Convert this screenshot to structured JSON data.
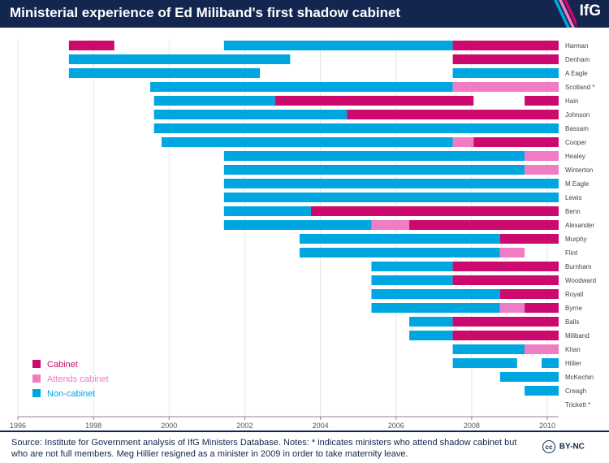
{
  "header": {
    "title": "Ministerial experience of Ed Miliband's first shadow cabinet",
    "logo": "IfG"
  },
  "footer": {
    "source": "Source: Institute for Government analysis of IfG Ministers Database. Notes: * indicates ministers who attend shadow cabinet but who are not full members. Meg Hillier resigned as a minister in 2009 in order to take maternity leave.",
    "license_icon": "cc",
    "license": "BY-NC"
  },
  "colors": {
    "cabinet": "#cc0a6e",
    "attends": "#f07cc3",
    "noncabinet": "#00a6e0",
    "navy": "#12264f"
  },
  "chart_data": {
    "type": "timeline",
    "title": "Ministerial experience of Ed Miliband's first shadow cabinet",
    "xlim": [
      1996,
      2010.3
    ],
    "xticks": [
      1996,
      1998,
      2000,
      2002,
      2004,
      2006,
      2008,
      2010
    ],
    "legend": [
      {
        "label": "Cabinet",
        "key": "cabinet"
      },
      {
        "label": "Attends cabinet",
        "key": "attends"
      },
      {
        "label": "Non-cabinet",
        "key": "noncabinet"
      }
    ],
    "legend_position": "bottom-left",
    "rows": [
      {
        "name": "Harman",
        "segments": [
          {
            "s": 1997.35,
            "e": 1998.55,
            "t": "cabinet"
          },
          {
            "s": 2001.45,
            "e": 2007.5,
            "t": "noncabinet"
          },
          {
            "s": 2007.5,
            "e": 2010.3,
            "t": "cabinet"
          }
        ]
      },
      {
        "name": "Denham",
        "segments": [
          {
            "s": 1997.35,
            "e": 2003.2,
            "t": "noncabinet"
          },
          {
            "s": 2007.5,
            "e": 2010.3,
            "t": "cabinet"
          }
        ]
      },
      {
        "name": "A Eagle",
        "segments": [
          {
            "s": 1997.35,
            "e": 2002.4,
            "t": "noncabinet"
          },
          {
            "s": 2007.5,
            "e": 2010.3,
            "t": "noncabinet"
          }
        ]
      },
      {
        "name": "Scotland *",
        "segments": [
          {
            "s": 1999.5,
            "e": 2007.5,
            "t": "noncabinet"
          },
          {
            "s": 2007.5,
            "e": 2010.3,
            "t": "attends"
          }
        ]
      },
      {
        "name": "Hain",
        "segments": [
          {
            "s": 1999.6,
            "e": 2002.8,
            "t": "noncabinet"
          },
          {
            "s": 2002.8,
            "e": 2008.05,
            "t": "cabinet"
          },
          {
            "s": 2009.4,
            "e": 2010.3,
            "t": "cabinet"
          }
        ]
      },
      {
        "name": "Johnson",
        "segments": [
          {
            "s": 1999.6,
            "e": 2004.7,
            "t": "noncabinet"
          },
          {
            "s": 2004.7,
            "e": 2010.3,
            "t": "cabinet"
          }
        ]
      },
      {
        "name": "Bassam",
        "segments": [
          {
            "s": 1999.6,
            "e": 2010.3,
            "t": "noncabinet"
          }
        ]
      },
      {
        "name": "Cooper",
        "segments": [
          {
            "s": 1999.8,
            "e": 2007.5,
            "t": "noncabinet"
          },
          {
            "s": 2007.5,
            "e": 2008.05,
            "t": "attends"
          },
          {
            "s": 2008.05,
            "e": 2010.3,
            "t": "cabinet"
          }
        ]
      },
      {
        "name": "Healey",
        "segments": [
          {
            "s": 2001.45,
            "e": 2009.4,
            "t": "noncabinet"
          },
          {
            "s": 2009.4,
            "e": 2010.3,
            "t": "attends"
          }
        ]
      },
      {
        "name": "Winterton",
        "segments": [
          {
            "s": 2001.45,
            "e": 2009.4,
            "t": "noncabinet"
          },
          {
            "s": 2009.4,
            "e": 2010.3,
            "t": "attends"
          }
        ]
      },
      {
        "name": "M Eagle",
        "segments": [
          {
            "s": 2001.45,
            "e": 2010.3,
            "t": "noncabinet"
          }
        ]
      },
      {
        "name": "Lewis",
        "segments": [
          {
            "s": 2001.45,
            "e": 2010.3,
            "t": "noncabinet"
          }
        ]
      },
      {
        "name": "Benn",
        "segments": [
          {
            "s": 2001.45,
            "e": 2003.75,
            "t": "noncabinet"
          },
          {
            "s": 2003.75,
            "e": 2010.3,
            "t": "cabinet"
          }
        ]
      },
      {
        "name": "Alexander",
        "segments": [
          {
            "s": 2001.45,
            "e": 2005.35,
            "t": "noncabinet"
          },
          {
            "s": 2005.35,
            "e": 2006.35,
            "t": "attends"
          },
          {
            "s": 2006.35,
            "e": 2010.3,
            "t": "cabinet"
          }
        ]
      },
      {
        "name": "Murphy",
        "segments": [
          {
            "s": 2003.45,
            "e": 2008.75,
            "t": "noncabinet"
          },
          {
            "s": 2008.75,
            "e": 2010.3,
            "t": "cabinet"
          }
        ]
      },
      {
        "name": "Flint",
        "segments": [
          {
            "s": 2003.45,
            "e": 2008.75,
            "t": "noncabinet"
          },
          {
            "s": 2008.75,
            "e": 2009.4,
            "t": "attends"
          }
        ]
      },
      {
        "name": "Burnham",
        "segments": [
          {
            "s": 2005.35,
            "e": 2007.5,
            "t": "noncabinet"
          },
          {
            "s": 2007.5,
            "e": 2010.3,
            "t": "cabinet"
          }
        ]
      },
      {
        "name": "Woodward",
        "segments": [
          {
            "s": 2005.35,
            "e": 2007.5,
            "t": "noncabinet"
          },
          {
            "s": 2007.5,
            "e": 2010.3,
            "t": "cabinet"
          }
        ]
      },
      {
        "name": "Royall",
        "segments": [
          {
            "s": 2005.35,
            "e": 2008.75,
            "t": "noncabinet"
          },
          {
            "s": 2008.75,
            "e": 2010.3,
            "t": "cabinet"
          }
        ]
      },
      {
        "name": "Byrne",
        "segments": [
          {
            "s": 2005.35,
            "e": 2008.75,
            "t": "noncabinet"
          },
          {
            "s": 2008.75,
            "e": 2009.4,
            "t": "attends"
          },
          {
            "s": 2009.4,
            "e": 2010.3,
            "t": "cabinet"
          }
        ]
      },
      {
        "name": "Balls",
        "segments": [
          {
            "s": 2006.35,
            "e": 2007.5,
            "t": "noncabinet"
          },
          {
            "s": 2007.5,
            "e": 2010.3,
            "t": "cabinet"
          }
        ]
      },
      {
        "name": "Miliband",
        "segments": [
          {
            "s": 2006.35,
            "e": 2007.5,
            "t": "noncabinet"
          },
          {
            "s": 2007.5,
            "e": 2010.3,
            "t": "cabinet"
          }
        ]
      },
      {
        "name": "Khan",
        "segments": [
          {
            "s": 2007.5,
            "e": 2009.4,
            "t": "noncabinet"
          },
          {
            "s": 2009.4,
            "e": 2010.3,
            "t": "attends"
          }
        ]
      },
      {
        "name": "Hillier",
        "segments": [
          {
            "s": 2007.5,
            "e": 2009.2,
            "t": "noncabinet"
          },
          {
            "s": 2009.85,
            "e": 2010.3,
            "t": "noncabinet"
          }
        ]
      },
      {
        "name": "McKechin",
        "segments": [
          {
            "s": 2008.75,
            "e": 2010.3,
            "t": "noncabinet"
          }
        ]
      },
      {
        "name": "Creagh",
        "segments": [
          {
            "s": 2009.4,
            "e": 2010.3,
            "t": "noncabinet"
          }
        ]
      },
      {
        "name": "Trickett *",
        "segments": []
      }
    ]
  }
}
